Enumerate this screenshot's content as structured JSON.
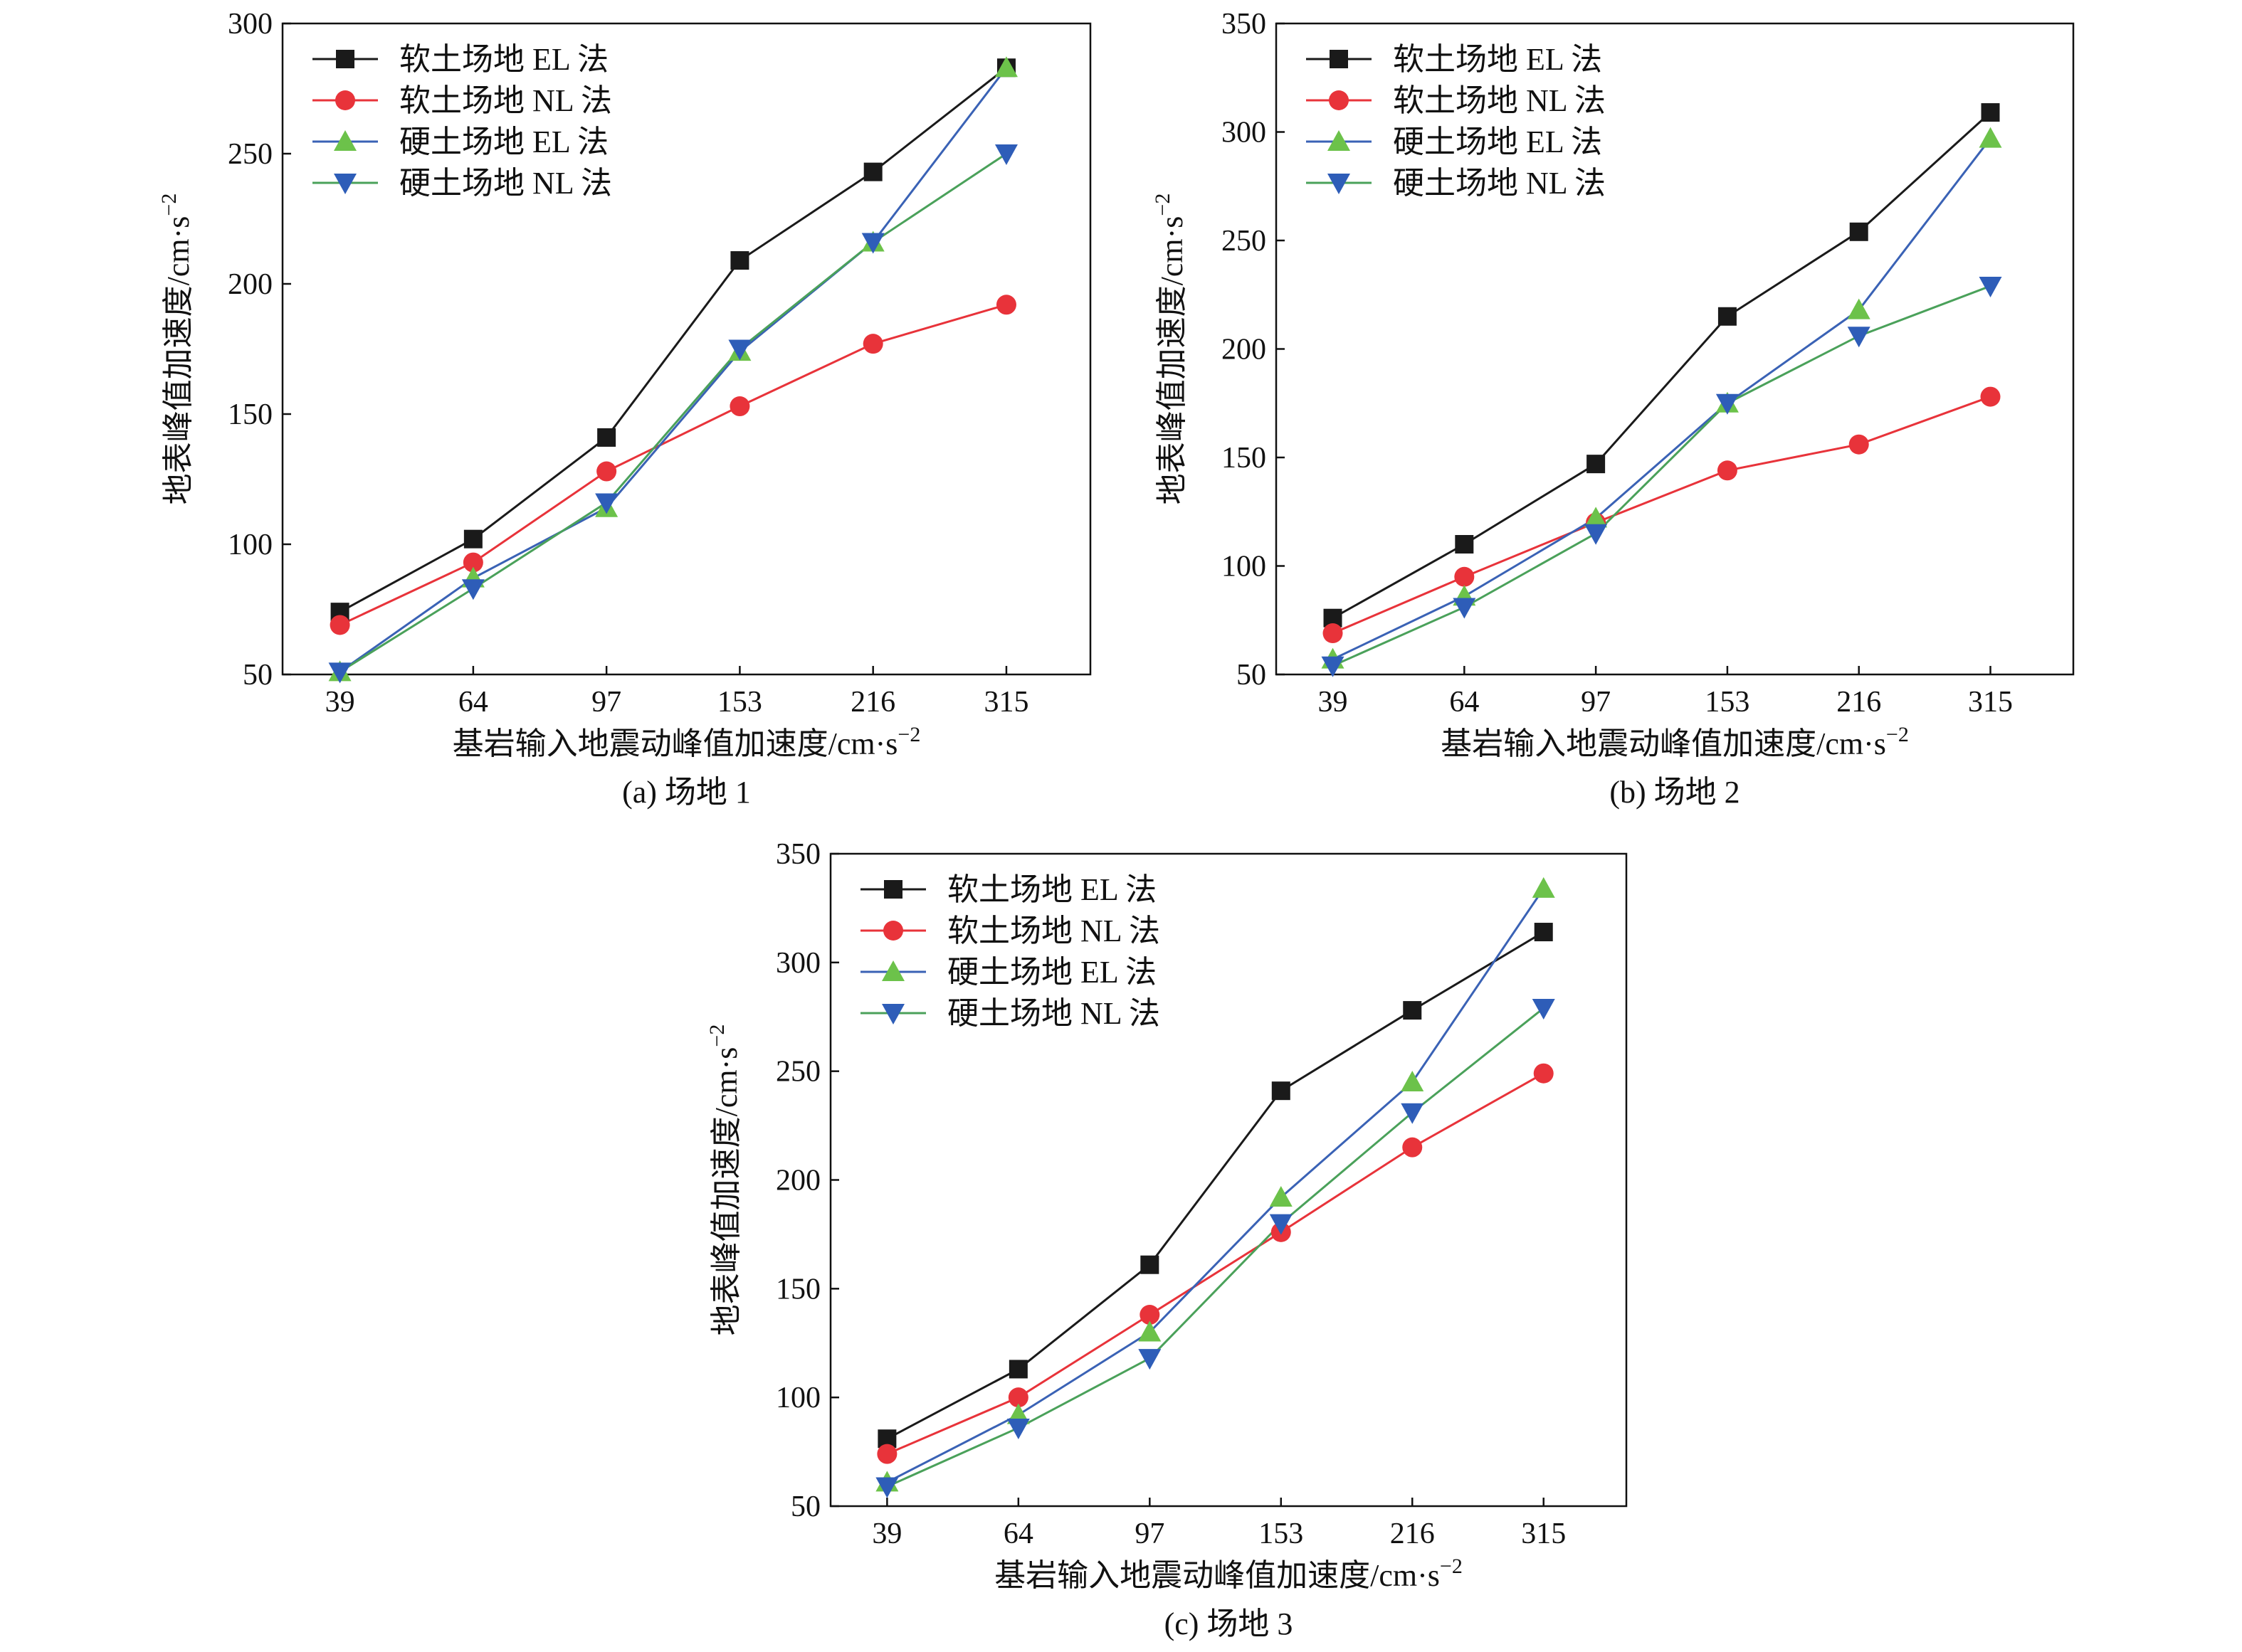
{
  "figure": {
    "shared": {
      "categories": [
        "39",
        "64",
        "97",
        "153",
        "216",
        "315"
      ],
      "x_axis_title": "基岩输入地震动峰值加速度/cm·s",
      "x_axis_unit_exponent": "−2",
      "y_axis_title": "地表峰值加速度/cm·s",
      "y_axis_unit_exponent": "−2",
      "legend": [
        "软土场地 EL 法",
        "软土场地 NL 法",
        "硬土场地 EL 法",
        "硬土场地 NL 法"
      ],
      "series_colors": [
        "#1a1a1a",
        "#e8333a",
        "#6cc24a",
        "#2e5db8"
      ],
      "line_colors": [
        "#1a1a1a",
        "#e8333a",
        "#3a62b5",
        "#4aa15a"
      ],
      "marker_shapes": [
        "square",
        "circle",
        "triangle-up",
        "triangle-down"
      ],
      "grid": "off",
      "legend_placement": "top-left"
    }
  },
  "chart_data": [
    {
      "type": "line",
      "caption": "(a) 场地 1",
      "categories": [
        "39",
        "64",
        "97",
        "153",
        "216",
        "315"
      ],
      "ylim": [
        50,
        300
      ],
      "yticks": [
        50,
        100,
        150,
        200,
        250,
        300
      ],
      "series": [
        {
          "name": "软土场地 EL 法",
          "values": [
            74,
            102,
            141,
            209,
            243,
            283
          ]
        },
        {
          "name": "软土场地 NL 法",
          "values": [
            69,
            93,
            128,
            153,
            177,
            192
          ]
        },
        {
          "name": "硬土场地 EL 法",
          "values": [
            51,
            87,
            114,
            174,
            216,
            283
          ]
        },
        {
          "name": "硬土场地 NL 法",
          "values": [
            51,
            83,
            116,
            175,
            216,
            250
          ]
        }
      ]
    },
    {
      "type": "line",
      "caption": "(b) 场地 2",
      "categories": [
        "39",
        "64",
        "97",
        "153",
        "216",
        "315"
      ],
      "ylim": [
        50,
        350
      ],
      "yticks": [
        50,
        100,
        150,
        200,
        250,
        300,
        350
      ],
      "series": [
        {
          "name": "软土场地 EL 法",
          "values": [
            76,
            110,
            147,
            215,
            254,
            309
          ]
        },
        {
          "name": "软土场地 NL 法",
          "values": [
            69,
            95,
            120,
            144,
            156,
            178
          ]
        },
        {
          "name": "硬土场地 EL 法",
          "values": [
            57,
            86,
            122,
            175,
            218,
            297
          ]
        },
        {
          "name": "硬土场地 NL 法",
          "values": [
            54,
            81,
            115,
            175,
            206,
            229
          ]
        }
      ]
    },
    {
      "type": "line",
      "caption": "(c) 场地 3",
      "categories": [
        "39",
        "64",
        "97",
        "153",
        "216",
        "315"
      ],
      "ylim": [
        50,
        350
      ],
      "yticks": [
        50,
        100,
        150,
        200,
        250,
        300,
        350
      ],
      "series": [
        {
          "name": "软土场地 EL 法",
          "values": [
            81,
            113,
            161,
            241,
            278,
            314
          ]
        },
        {
          "name": "软土场地 NL 法",
          "values": [
            74,
            100,
            138,
            176,
            215,
            249
          ]
        },
        {
          "name": "硬土场地 EL 法",
          "values": [
            61,
            92,
            130,
            192,
            245,
            334
          ]
        },
        {
          "name": "硬土场地 NL 法",
          "values": [
            59,
            86,
            118,
            180,
            231,
            279
          ]
        }
      ]
    }
  ]
}
